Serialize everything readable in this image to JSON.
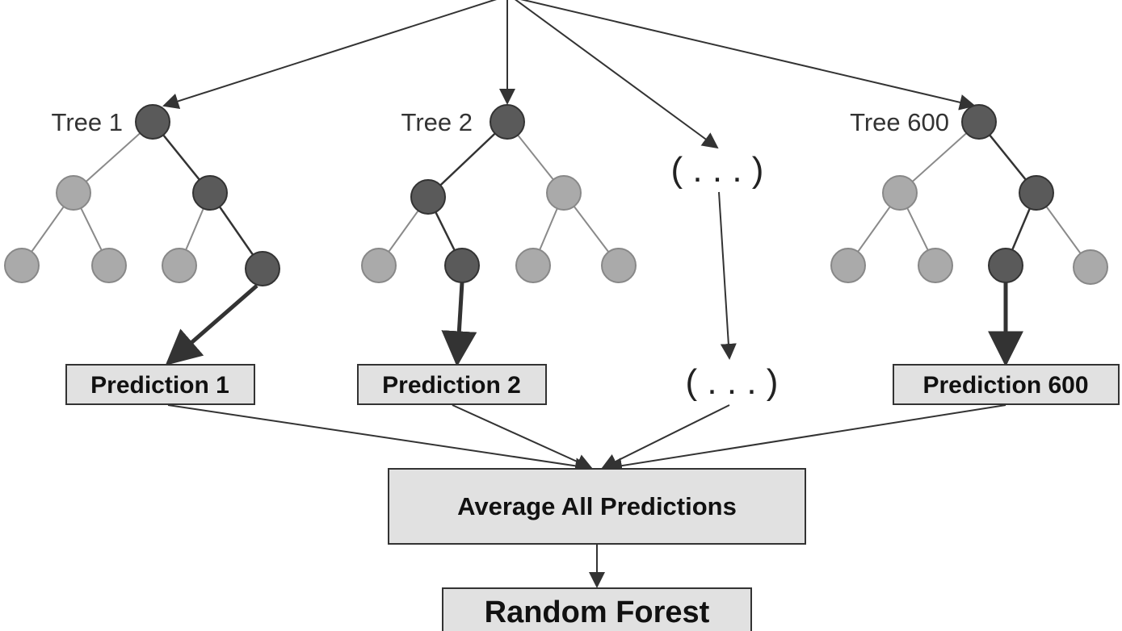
{
  "trees": [
    {
      "label": "Tree 1"
    },
    {
      "label": "Tree 2"
    },
    {
      "label": "Tree 600"
    }
  ],
  "ellipsis": {
    "upper": "( . . . )",
    "lower": "( . . . )"
  },
  "predictions": [
    {
      "label": "Prediction 1"
    },
    {
      "label": "Prediction 2"
    },
    {
      "label": "Prediction 600"
    }
  ],
  "average_box": {
    "label": "Average All Predictions"
  },
  "result_box": {
    "label": "Random Forest"
  },
  "colors": {
    "dark_node": "#5a5a5a",
    "light_node": "#aaaaaa",
    "box_fill": "#e1e1e1",
    "stroke": "#333333"
  }
}
